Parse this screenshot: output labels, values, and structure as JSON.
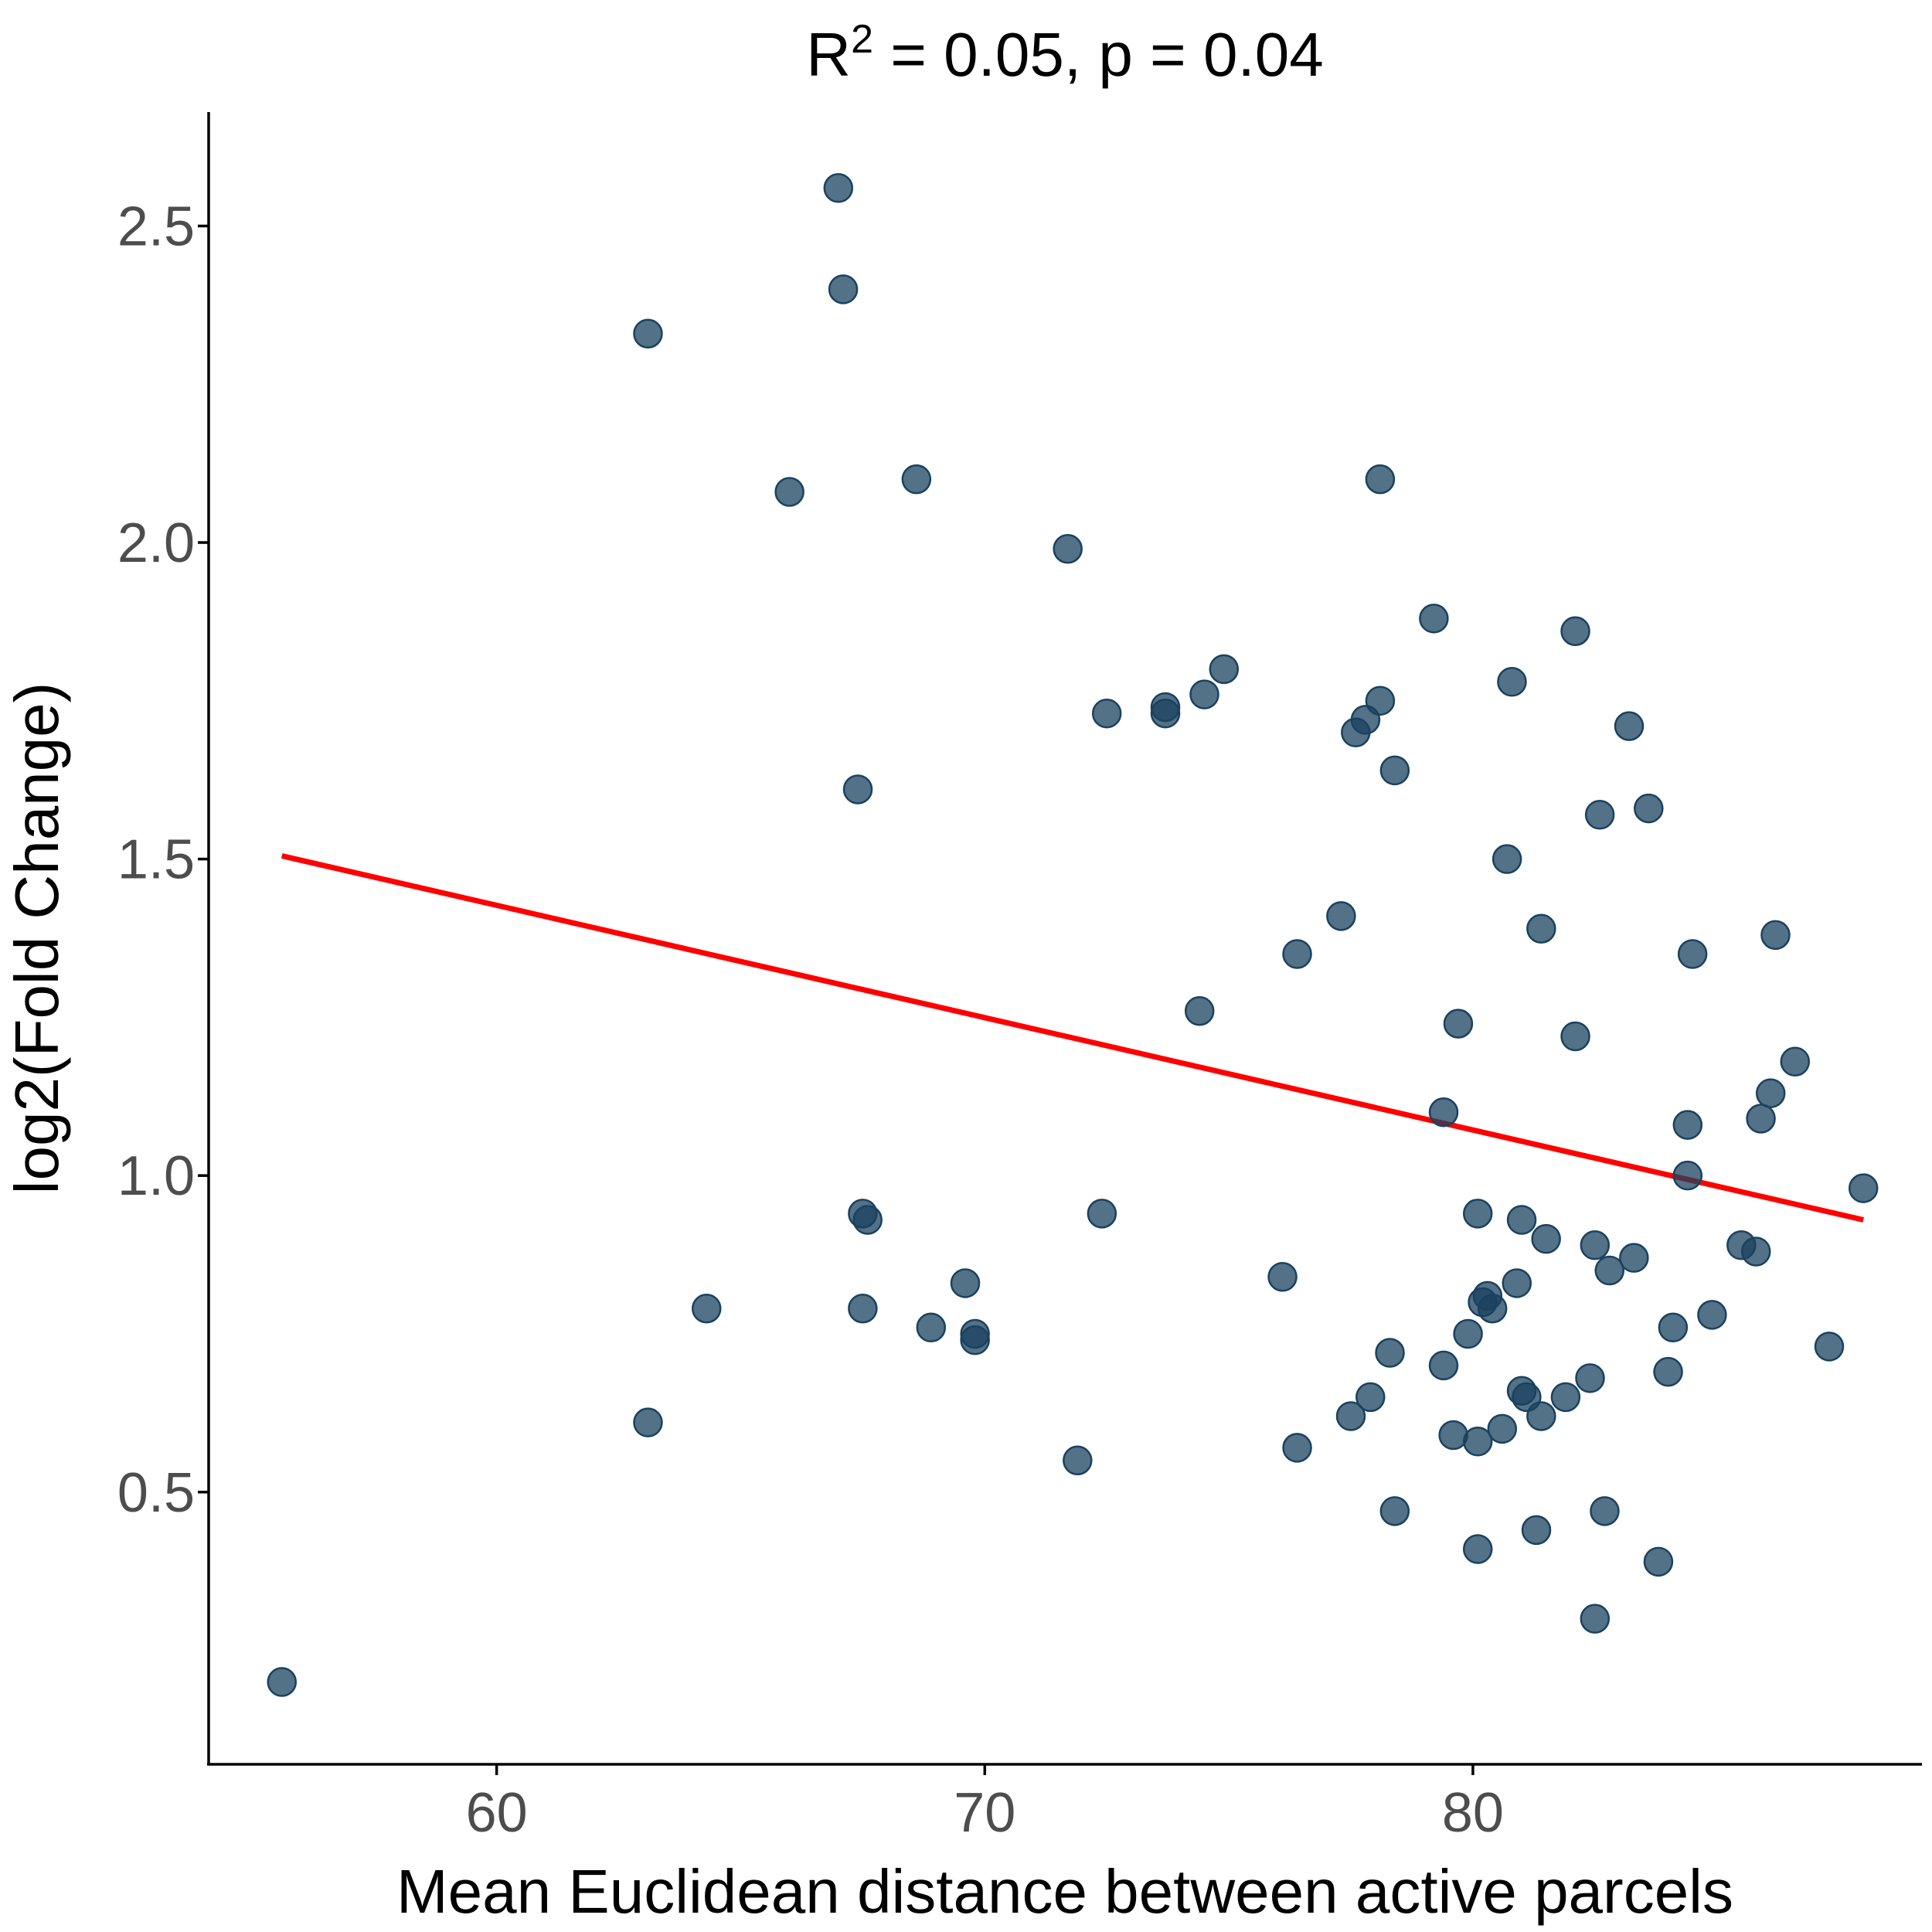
{
  "chart_data": {
    "type": "scatter",
    "title": "R² = 0.05, p = 0.04",
    "title_main": "R",
    "title_sup": "2",
    "title_rest": " = 0.05, p = 0.04",
    "xlabel": "Mean Euclidean distance between active parcels",
    "ylabel": "log2(Fold Change)",
    "xlim": [
      54.1,
      89.2
    ],
    "ylim": [
      0.07,
      2.68
    ],
    "x_ticks": [
      60,
      70,
      80
    ],
    "y_ticks": [
      0.5,
      1.0,
      1.5,
      2.0,
      2.5
    ],
    "x_tick_labels": [
      "60",
      "70",
      "80"
    ],
    "y_tick_labels": [
      "0.5",
      "1.0",
      "1.5",
      "2.0",
      "2.5"
    ],
    "grid": false,
    "colors": {
      "points": "#1a425f",
      "fit_line": "#ff0000"
    },
    "fit_line": {
      "x": [
        55.6,
        88.0
      ],
      "y": [
        1.505,
        0.93
      ]
    },
    "points": [
      {
        "x": 55.6,
        "y": 0.2
      },
      {
        "x": 63.1,
        "y": 2.33
      },
      {
        "x": 63.1,
        "y": 0.61
      },
      {
        "x": 64.3,
        "y": 0.79
      },
      {
        "x": 66.0,
        "y": 2.08
      },
      {
        "x": 67.0,
        "y": 2.56
      },
      {
        "x": 67.1,
        "y": 2.4
      },
      {
        "x": 67.4,
        "y": 1.61
      },
      {
        "x": 67.5,
        "y": 0.79
      },
      {
        "x": 67.5,
        "y": 0.94
      },
      {
        "x": 67.6,
        "y": 0.93
      },
      {
        "x": 68.6,
        "y": 2.1
      },
      {
        "x": 68.9,
        "y": 0.76
      },
      {
        "x": 69.6,
        "y": 0.83
      },
      {
        "x": 69.8,
        "y": 0.75
      },
      {
        "x": 69.8,
        "y": 0.74
      },
      {
        "x": 71.7,
        "y": 1.99
      },
      {
        "x": 71.9,
        "y": 0.55
      },
      {
        "x": 72.4,
        "y": 0.94
      },
      {
        "x": 72.5,
        "y": 1.73
      },
      {
        "x": 73.7,
        "y": 1.73
      },
      {
        "x": 73.7,
        "y": 1.74
      },
      {
        "x": 74.4,
        "y": 1.26
      },
      {
        "x": 74.5,
        "y": 1.76
      },
      {
        "x": 74.9,
        "y": 1.8
      },
      {
        "x": 76.1,
        "y": 0.84
      },
      {
        "x": 76.4,
        "y": 1.35
      },
      {
        "x": 76.4,
        "y": 0.57
      },
      {
        "x": 77.3,
        "y": 1.41
      },
      {
        "x": 77.5,
        "y": 0.62
      },
      {
        "x": 77.6,
        "y": 1.7
      },
      {
        "x": 77.8,
        "y": 1.72
      },
      {
        "x": 77.9,
        "y": 0.65
      },
      {
        "x": 78.1,
        "y": 1.75
      },
      {
        "x": 78.1,
        "y": 2.1
      },
      {
        "x": 78.3,
        "y": 0.72
      },
      {
        "x": 78.4,
        "y": 1.64
      },
      {
        "x": 78.4,
        "y": 0.47
      },
      {
        "x": 79.2,
        "y": 1.88
      },
      {
        "x": 79.4,
        "y": 0.7
      },
      {
        "x": 79.4,
        "y": 1.1
      },
      {
        "x": 79.6,
        "y": 0.59
      },
      {
        "x": 79.7,
        "y": 1.24
      },
      {
        "x": 79.9,
        "y": 0.75
      },
      {
        "x": 80.1,
        "y": 0.94
      },
      {
        "x": 80.1,
        "y": 0.58
      },
      {
        "x": 80.1,
        "y": 0.41
      },
      {
        "x": 80.2,
        "y": 0.8
      },
      {
        "x": 80.3,
        "y": 0.81
      },
      {
        "x": 80.4,
        "y": 0.79
      },
      {
        "x": 80.6,
        "y": 0.6
      },
      {
        "x": 80.7,
        "y": 1.5
      },
      {
        "x": 80.8,
        "y": 1.78
      },
      {
        "x": 80.9,
        "y": 0.83
      },
      {
        "x": 81.0,
        "y": 0.66
      },
      {
        "x": 81.0,
        "y": 0.93
      },
      {
        "x": 81.1,
        "y": 0.65
      },
      {
        "x": 81.3,
        "y": 0.44
      },
      {
        "x": 81.4,
        "y": 0.62
      },
      {
        "x": 81.4,
        "y": 1.39
      },
      {
        "x": 81.5,
        "y": 0.9
      },
      {
        "x": 81.9,
        "y": 0.65
      },
      {
        "x": 82.1,
        "y": 1.86
      },
      {
        "x": 82.1,
        "y": 1.22
      },
      {
        "x": 82.4,
        "y": 0.68
      },
      {
        "x": 82.5,
        "y": 0.89
      },
      {
        "x": 82.5,
        "y": 0.3
      },
      {
        "x": 82.6,
        "y": 1.57
      },
      {
        "x": 82.7,
        "y": 0.47
      },
      {
        "x": 82.8,
        "y": 0.85
      },
      {
        "x": 83.2,
        "y": 1.71
      },
      {
        "x": 83.3,
        "y": 0.87
      },
      {
        "x": 83.6,
        "y": 1.58
      },
      {
        "x": 83.8,
        "y": 0.39
      },
      {
        "x": 84.0,
        "y": 0.69
      },
      {
        "x": 84.1,
        "y": 0.76
      },
      {
        "x": 84.4,
        "y": 1.08
      },
      {
        "x": 84.4,
        "y": 1.0
      },
      {
        "x": 84.5,
        "y": 1.35
      },
      {
        "x": 84.9,
        "y": 0.78
      },
      {
        "x": 85.5,
        "y": 0.89
      },
      {
        "x": 85.8,
        "y": 0.88
      },
      {
        "x": 85.9,
        "y": 1.09
      },
      {
        "x": 86.1,
        "y": 1.13
      },
      {
        "x": 86.2,
        "y": 1.38
      },
      {
        "x": 86.6,
        "y": 1.18
      },
      {
        "x": 87.3,
        "y": 0.73
      },
      {
        "x": 88.0,
        "y": 0.98
      }
    ]
  }
}
